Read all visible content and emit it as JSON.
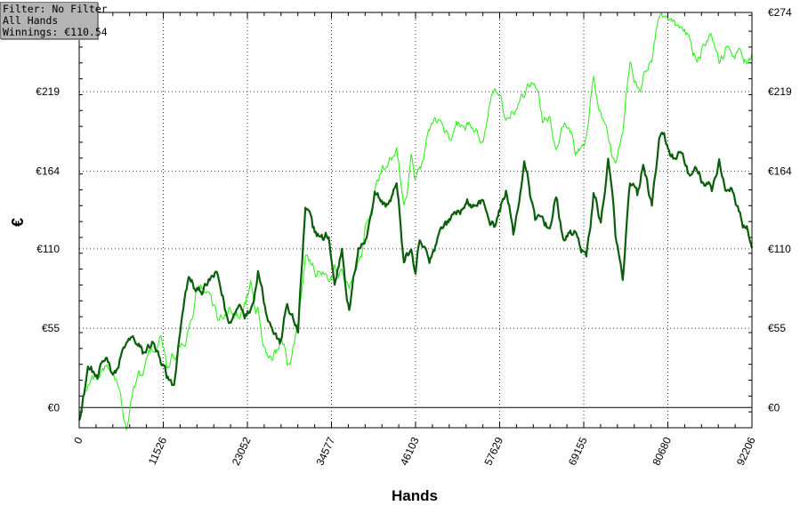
{
  "filter_box": {
    "line1": "Filter: No Filter",
    "line2": "All Hands",
    "line3": "Winnings: €110.54"
  },
  "chart_data": {
    "type": "line",
    "xlabel": "Hands",
    "ylabel": "€",
    "xlim": [
      0,
      92206
    ],
    "ylim": [
      -14,
      274
    ],
    "x_ticks": [
      0,
      11526,
      23052,
      34577,
      46103,
      57629,
      69155,
      80680,
      92206
    ],
    "y_ticks": [
      0,
      55,
      110,
      164,
      219,
      274
    ],
    "y_tick_labels": [
      "€0",
      "€55",
      "€110",
      "€164",
      "€219",
      "€274"
    ],
    "grid": true,
    "colors": {
      "dark_series": "#0b5e0b",
      "light_series": "#33ee22"
    },
    "series": [
      {
        "color": "#0b5e0b",
        "x": [
          0,
          1200,
          2500,
          3800,
          5000,
          6200,
          7500,
          8700,
          10000,
          11200,
          12000,
          13000,
          14000,
          15000,
          16000,
          17500,
          19000,
          20500,
          22000,
          23500,
          24500,
          26000,
          27500,
          28500,
          30000,
          31000,
          32000,
          32700,
          33500,
          34200,
          35000,
          36000,
          37000,
          38000,
          38700,
          39500,
          40500,
          42000,
          43500,
          44500,
          45500,
          46100,
          46800,
          48000,
          49500,
          51000,
          52500,
          54000,
          55500,
          57000,
          58500,
          59500,
          61000,
          62500,
          63500,
          64500,
          65500,
          66500,
          68000,
          69500,
          70500,
          71500,
          72500,
          73500,
          74500,
          75500,
          76500,
          77300,
          78500,
          79500,
          80700,
          81700,
          82700,
          83700,
          84700,
          85700,
          86700,
          87700,
          88700,
          89700,
          90700,
          91500,
          92206
        ],
        "values": [
          -8,
          28,
          20,
          35,
          25,
          42,
          48,
          38,
          45,
          30,
          20,
          15,
          60,
          90,
          80,
          85,
          92,
          58,
          72,
          68,
          95,
          60,
          45,
          72,
          52,
          138,
          125,
          120,
          116,
          118,
          85,
          110,
          68,
          100,
          114,
          120,
          150,
          140,
          155,
          100,
          110,
          92,
          115,
          100,
          125,
          132,
          138,
          140,
          142,
          125,
          150,
          120,
          170,
          130,
          132,
          125,
          145,
          115,
          122,
          105,
          148,
          128,
          172,
          120,
          88,
          155,
          148,
          168,
          140,
          186,
          180,
          172,
          176,
          160,
          164,
          154,
          150,
          172,
          150,
          148,
          132,
          126,
          110.54
        ]
      },
      {
        "color": "#33ee22",
        "x": [
          0,
          1200,
          2500,
          3800,
          5000,
          5800,
          6500,
          7500,
          8700,
          10000,
          11200,
          12000,
          13000,
          14000,
          15000,
          16000,
          17500,
          19000,
          20500,
          22000,
          23500,
          24500,
          26000,
          27500,
          28500,
          30000,
          31000,
          32000,
          32700,
          33500,
          34200,
          35000,
          36000,
          37000,
          38000,
          38700,
          39500,
          40500,
          42000,
          43500,
          44500,
          45500,
          46100,
          46800,
          48000,
          49500,
          51000,
          52500,
          54000,
          55500,
          57000,
          58500,
          59500,
          61000,
          62500,
          63500,
          64500,
          65500,
          66500,
          68000,
          69500,
          70500,
          71500,
          72500,
          73500,
          74500,
          75500,
          76500,
          77300,
          78500,
          79500,
          80700,
          81700,
          82700,
          83700,
          84700,
          85700,
          86700,
          87700,
          88700,
          89700,
          90700,
          91500,
          92206
        ],
        "values": [
          -5,
          15,
          22,
          30,
          20,
          2,
          -15,
          15,
          22,
          40,
          50,
          28,
          35,
          45,
          55,
          82,
          80,
          60,
          70,
          62,
          88,
          70,
          35,
          45,
          30,
          58,
          105,
          100,
          95,
          92,
          88,
          100,
          95,
          82,
          95,
          105,
          130,
          150,
          165,
          180,
          140,
          175,
          158,
          165,
          192,
          200,
          185,
          195,
          192,
          188,
          222,
          200,
          205,
          215,
          222,
          198,
          202,
          180,
          198,
          175,
          188,
          230,
          205,
          188,
          170,
          190,
          240,
          222,
          230,
          240,
          270,
          268,
          264,
          262,
          256,
          240,
          252,
          258,
          238,
          250,
          244,
          248,
          238,
          246
        ]
      }
    ]
  }
}
